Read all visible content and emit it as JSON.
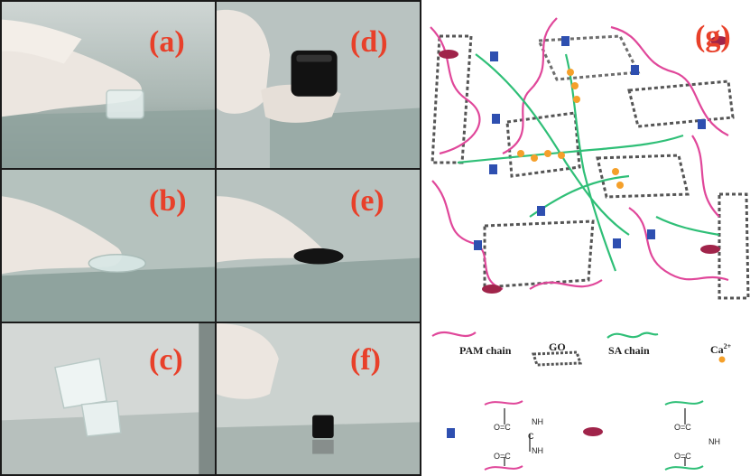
{
  "panels": {
    "a": {
      "label": "(a)"
    },
    "b": {
      "label": "(b)"
    },
    "c": {
      "label": "(c)"
    },
    "d": {
      "label": "(d)"
    },
    "e": {
      "label": "(e)"
    },
    "f": {
      "label": "(f)"
    }
  },
  "schematic": {
    "label": "(g)",
    "legend": {
      "pam": "PAM chain",
      "go": "GO",
      "sa": "SA chain",
      "ca": "Ca",
      "ca_charge": "2+"
    },
    "bond_1": {
      "top": "O=C",
      "nh_top": "NH",
      "bridge": "C",
      "nh_bottom": "NH",
      "bottom": "O=C"
    },
    "bond_2": {
      "top": "O=C",
      "nh": "NH",
      "bottom": "O=C"
    }
  },
  "colors": {
    "label": "#e8402a",
    "pam": "#e0479a",
    "sa": "#2fbf77",
    "ca": "#f5a02a",
    "crosslink_square": "#2e4fb0",
    "crosslink_ellipse": "#a0244a",
    "go_sheet": "#555555"
  }
}
